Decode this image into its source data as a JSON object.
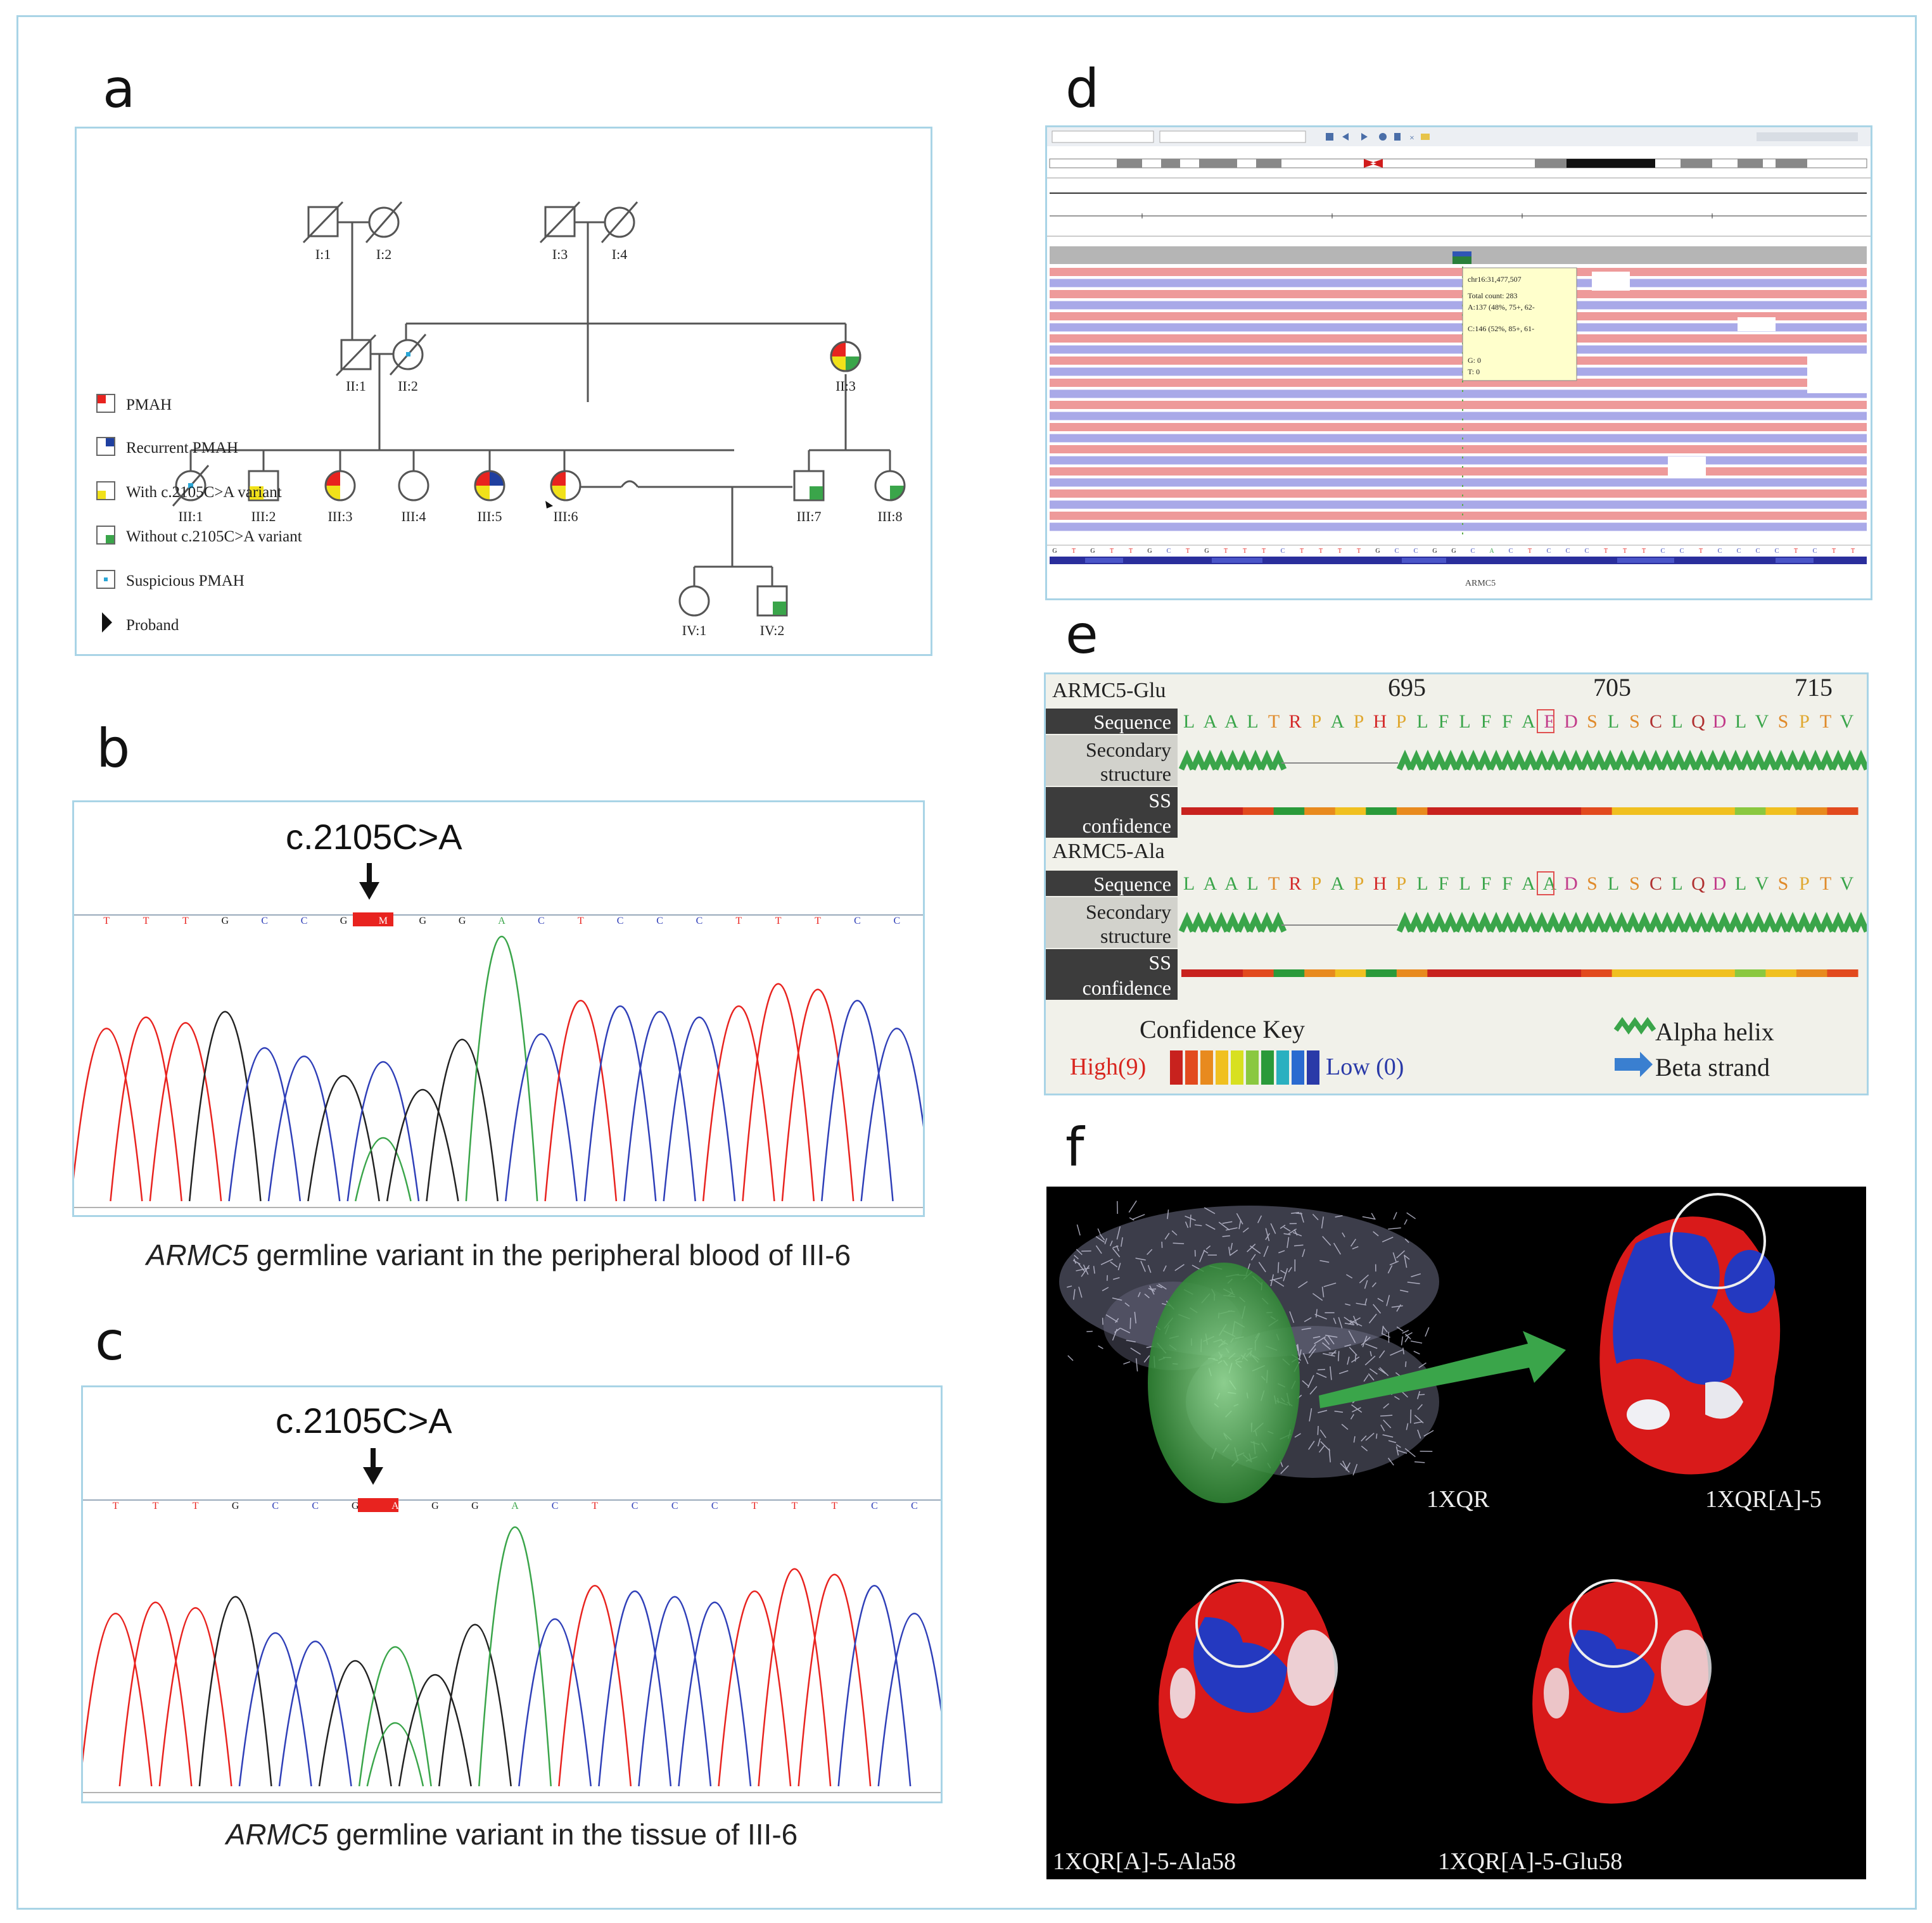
{
  "labels": {
    "a": "a",
    "b": "b",
    "c": "c",
    "d": "d",
    "e": "e",
    "f": "f"
  },
  "pedigree": {
    "individuals": [
      "I:1",
      "I:2",
      "I:3",
      "I:4",
      "II:1",
      "II:2",
      "II:3",
      "III:1",
      "III:2",
      "III:3",
      "III:4",
      "III:5",
      "III:6",
      "III:7",
      "III:8",
      "IV:1",
      "IV:2"
    ],
    "legend": [
      "PMAH",
      "Recurrent PMAH",
      "With c.2105C>A variant",
      "Without c.2105C>A variant",
      "Suspicious PMAH",
      "Proband"
    ],
    "colors": {
      "pmah": "#e8231f",
      "recurrent": "#1f3fa0",
      "with_variant": "#f1e11a",
      "without_variant": "#3aa54a",
      "suspicious": "#2aa6d6"
    }
  },
  "panel_b": {
    "mutation": "c.2105C>A",
    "bases": [
      "T",
      "T",
      "T",
      "G",
      "C",
      "C",
      "G",
      "M",
      "G",
      "G",
      "A",
      "C",
      "T",
      "C",
      "C",
      "C",
      "T",
      "T",
      "T",
      "C",
      "C"
    ],
    "caption_gene": "ARMC5",
    "caption_rest": " germline variant in the peripheral blood of III-6"
  },
  "panel_c": {
    "mutation": "c.2105C>A",
    "bases": [
      "T",
      "T",
      "T",
      "G",
      "C",
      "C",
      "G",
      "A",
      "G",
      "G",
      "A",
      "C",
      "T",
      "C",
      "C",
      "C",
      "T",
      "T",
      "T",
      "C",
      "C"
    ],
    "caption_gene": "ARMC5",
    "caption_rest": " germline variant in the tissue of III-6"
  },
  "panel_d": {
    "popup": [
      "chr16:31,477,507",
      "Total count: 283",
      "A:137 (48%, 75+, 62-",
      "C:146 (52%, 85+, 61-",
      "G: 0",
      "T: 0"
    ],
    "gene": "ARMC5"
  },
  "panel_e": {
    "ticks": [
      "695",
      "705",
      "715"
    ],
    "seq1_name": "ARMC5-Glu",
    "seq2_name": "ARMC5-Ala",
    "seq1": "LAALTRPAPHPLFLFFAEDSLSCLQDLVSPTV",
    "seq2": "LAALTRPAPHPLFLFFAADSLSCLQDLVSPTV",
    "row_sequence": "Sequence",
    "row_secondary_1": "Secondary",
    "row_secondary_2": "structure",
    "row_ss_1": "SS",
    "row_ss_2": "confidence",
    "key_title": "Confidence Key",
    "key_high": "High(9)",
    "key_low": "Low (0)",
    "alpha": "Alpha helix",
    "beta": "Beta strand"
  },
  "panel_f": {
    "labels": [
      "1XQR",
      "1XQR[A]-5",
      "1XQR[A]-5-Ala58",
      "1XQR[A]-5-Glu58"
    ]
  }
}
